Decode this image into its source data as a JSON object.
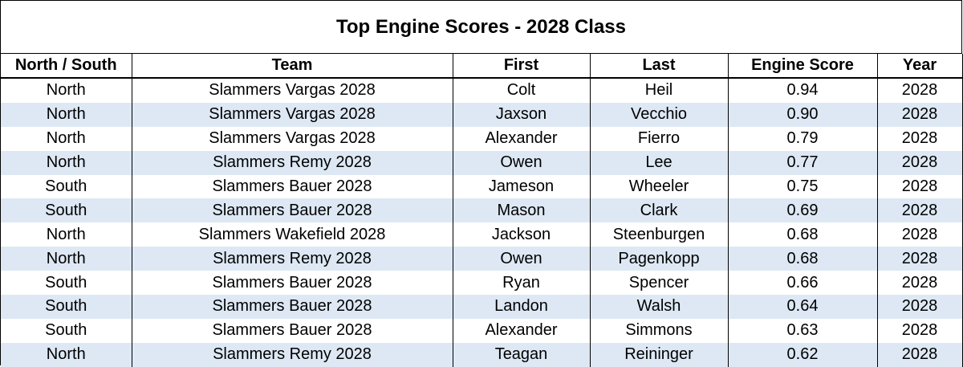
{
  "title": "Top Engine Scores - 2028 Class",
  "columns": [
    "North / South",
    "Team",
    "First",
    "Last",
    "Engine Score",
    "Year"
  ],
  "rows": [
    [
      "North",
      "Slammers Vargas 2028",
      "Colt",
      "Heil",
      "0.94",
      "2028"
    ],
    [
      "North",
      "Slammers Vargas 2028",
      "Jaxson",
      "Vecchio",
      "0.90",
      "2028"
    ],
    [
      "North",
      "Slammers Vargas 2028",
      "Alexander",
      "Fierro",
      "0.79",
      "2028"
    ],
    [
      "North",
      "Slammers Remy 2028",
      "Owen",
      "Lee",
      "0.77",
      "2028"
    ],
    [
      "South",
      "Slammers Bauer 2028",
      "Jameson",
      "Wheeler",
      "0.75",
      "2028"
    ],
    [
      "South",
      "Slammers Bauer 2028",
      "Mason",
      "Clark",
      "0.69",
      "2028"
    ],
    [
      "North",
      "Slammers Wakefield 2028",
      "Jackson",
      "Steenburgen",
      "0.68",
      "2028"
    ],
    [
      "North",
      "Slammers Remy 2028",
      "Owen",
      "Pagenkopp",
      "0.68",
      "2028"
    ],
    [
      "South",
      "Slammers Bauer 2028",
      "Ryan",
      "Spencer",
      "0.66",
      "2028"
    ],
    [
      "South",
      "Slammers Bauer 2028",
      "Landon",
      "Walsh",
      "0.64",
      "2028"
    ],
    [
      "South",
      "Slammers Bauer 2028",
      "Alexander",
      "Simmons",
      "0.63",
      "2028"
    ],
    [
      "North",
      "Slammers Remy 2028",
      "Teagan",
      "Reininger",
      "0.62",
      "2028"
    ]
  ],
  "colors": {
    "alt_row_fill": "#dde8f4",
    "border": "#000000"
  }
}
